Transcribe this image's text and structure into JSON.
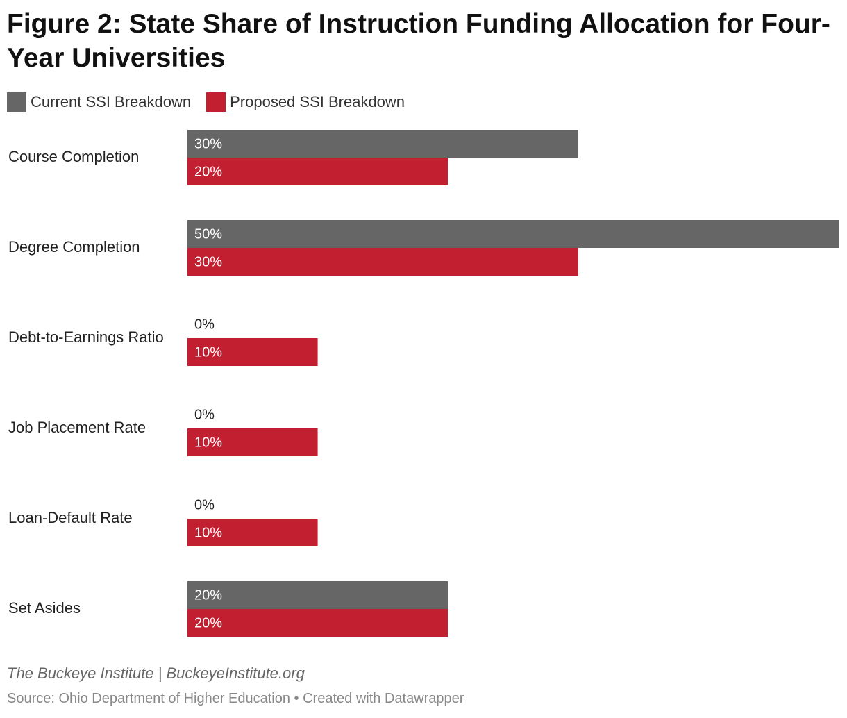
{
  "title": "Figure 2: State Share of Instruction Funding Allocation for Four-Year Universities",
  "byline": "The Buckeye Institute | BuckeyeInstitute.org",
  "footer": "Source: Ohio Department of Higher Education • Created with Datawrapper",
  "colors": {
    "current": "#666666",
    "proposed": "#c21f31"
  },
  "chart_data": {
    "type": "bar",
    "orientation": "horizontal",
    "categories": [
      "Course Completion",
      "Degree Completion",
      "Debt-to-Earnings Ratio",
      "Job Placement Rate",
      "Loan-Default Rate",
      "Set Asides"
    ],
    "series": [
      {
        "name": "Current SSI Breakdown",
        "values": [
          30,
          50,
          0,
          0,
          0,
          20
        ],
        "labels": [
          "30%",
          "50%",
          "0%",
          "0%",
          "0%",
          "20%"
        ]
      },
      {
        "name": "Proposed SSI Breakdown",
        "values": [
          20,
          30,
          10,
          10,
          10,
          20
        ],
        "labels": [
          "20%",
          "30%",
          "10%",
          "10%",
          "10%",
          "20%"
        ]
      }
    ],
    "xlim": [
      0,
      50
    ],
    "legend": "top-left",
    "grid": false
  }
}
